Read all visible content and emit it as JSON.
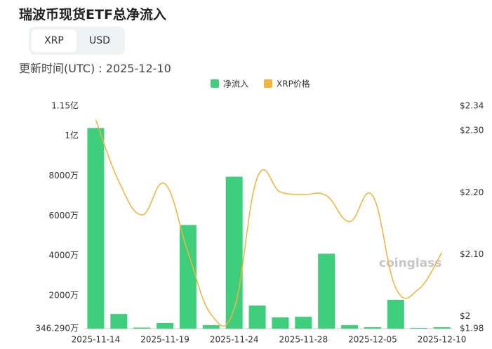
{
  "header": {
    "title": "瑞波币现货ETF总净流入",
    "tabs": [
      "XRP",
      "USD"
    ],
    "updated": "更新时间(UTC) : 2025-12-10"
  },
  "chart_data": {
    "type": "bar-line",
    "categories": [
      "2025-11-14",
      null,
      null,
      "2025-11-19",
      null,
      null,
      "2025-11-24",
      null,
      null,
      "2025-11-28",
      null,
      null,
      "2025-12-05",
      null,
      null,
      "2025-12-10"
    ],
    "series": [
      {
        "name": "净流入",
        "color": "#3fce7c",
        "type": "bar",
        "axis": "y",
        "values": [
          10400,
          1080,
          400,
          630,
          5540,
          520,
          7960,
          1500,
          910,
          940,
          4100,
          520,
          420,
          1790,
          380,
          420
        ]
      },
      {
        "name": "XRP价格",
        "color": "#f2b43c",
        "type": "line",
        "axis": "y2",
        "values": [
          2.318,
          2.218,
          2.164,
          2.214,
          2.103,
          2.003,
          2.012,
          2.224,
          2.201,
          2.197,
          2.195,
          2.153,
          2.195,
          2.046,
          2.044,
          2.103
        ]
      }
    ],
    "ylim": [
      346.29,
      11500
    ],
    "yticks": [
      {
        "value": 346.29,
        "label": "346.290万"
      },
      {
        "value": 2000,
        "label": "2000万"
      },
      {
        "value": 4000,
        "label": "4000万"
      },
      {
        "value": 6000,
        "label": "6000万"
      },
      {
        "value": 8000,
        "label": "8000万"
      },
      {
        "value": 10000,
        "label": "1亿"
      },
      {
        "value": 11500,
        "label": "1.15亿"
      }
    ],
    "y2lim": [
      1.98,
      2.34
    ],
    "y2ticks": [
      {
        "value": 1.98,
        "label": "$1.98"
      },
      {
        "value": 2,
        "label": "$2"
      },
      {
        "value": 2.1,
        "label": "$2.10"
      },
      {
        "value": 2.2,
        "label": "$2.20"
      },
      {
        "value": 2.3,
        "label": "$2.30"
      },
      {
        "value": 2.34,
        "label": "$2.34"
      }
    ],
    "watermark": "coinglass"
  }
}
